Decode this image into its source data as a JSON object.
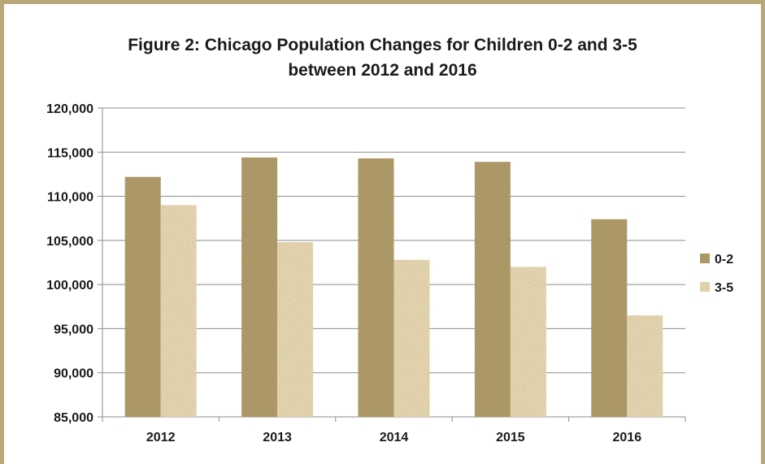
{
  "chart_data": {
    "type": "bar",
    "title_line1": "Figure 2: Chicago Population Changes for Children 0-2 and 3-5",
    "title_line2": "between 2012 and 2016",
    "xlabel": "",
    "ylabel": "",
    "categories": [
      "2012",
      "2013",
      "2014",
      "2015",
      "2016"
    ],
    "series": [
      {
        "name": "0-2",
        "values": [
          112200,
          114400,
          114300,
          113900,
          107400
        ],
        "color": "#b5a06d"
      },
      {
        "name": "3-5",
        "values": [
          109000,
          104800,
          102800,
          102000,
          96500
        ],
        "color": "#ecdcb6"
      }
    ],
    "ylim": [
      85000,
      120000
    ],
    "y_ticks": [
      85000,
      90000,
      95000,
      100000,
      105000,
      110000,
      115000,
      120000
    ],
    "y_tick_labels": [
      "85,000",
      "90,000",
      "95,000",
      "100,000",
      "105,000",
      "110,000",
      "115,000",
      "120,000"
    ],
    "grid": true,
    "legend_position": "right"
  }
}
